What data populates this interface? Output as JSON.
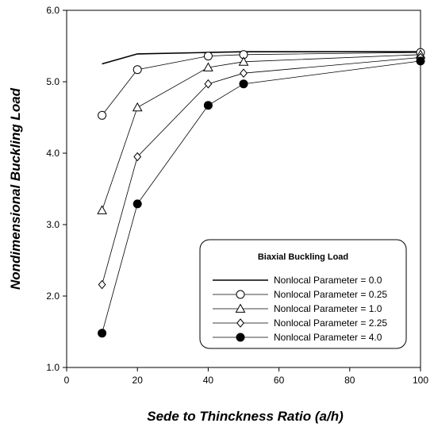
{
  "chart_data": {
    "type": "line",
    "title": "",
    "xlabel": "Sede to Thinckness  Ratio (a/h)",
    "ylabel": "Nondimensional  Buckling  Load",
    "xlim": [
      0,
      100
    ],
    "ylim": [
      1.0,
      6.0
    ],
    "x_ticks": [
      "0",
      "20",
      "40",
      "60",
      "80",
      "100"
    ],
    "y_ticks": [
      "1.0",
      "2.0",
      "3.0",
      "4.0",
      "5.0",
      "6.0"
    ],
    "grid": false,
    "legend": {
      "title": "Biaxial  Buckling Load",
      "placement": "bottom-right"
    },
    "series": [
      {
        "name": "Nonlocal  Parameter = 0.0",
        "marker": "none",
        "x": [
          10,
          20,
          40,
          50,
          100
        ],
        "y": [
          5.25,
          5.39,
          5.41,
          5.42,
          5.42
        ]
      },
      {
        "name": "Nonlocal  Parameter = 0.25",
        "marker": "circle-open",
        "x": [
          10,
          20,
          40,
          50,
          100
        ],
        "y": [
          4.53,
          5.17,
          5.36,
          5.38,
          5.41
        ]
      },
      {
        "name": "Nonlocal  Parameter = 1.0",
        "marker": "triangle-open",
        "x": [
          10,
          20,
          40,
          50,
          100
        ],
        "y": [
          3.2,
          4.64,
          5.2,
          5.28,
          5.38
        ]
      },
      {
        "name": "Nonlocal  Parameter = 2.25",
        "marker": "diamond-open",
        "x": [
          10,
          20,
          40,
          50,
          100
        ],
        "y": [
          2.16,
          3.95,
          4.97,
          5.12,
          5.34
        ]
      },
      {
        "name": "Nonlocal  Parameter = 4.0",
        "marker": "circle-filled",
        "x": [
          10,
          20,
          40,
          50,
          100
        ],
        "y": [
          1.48,
          3.29,
          4.67,
          4.97,
          5.29
        ]
      }
    ]
  }
}
